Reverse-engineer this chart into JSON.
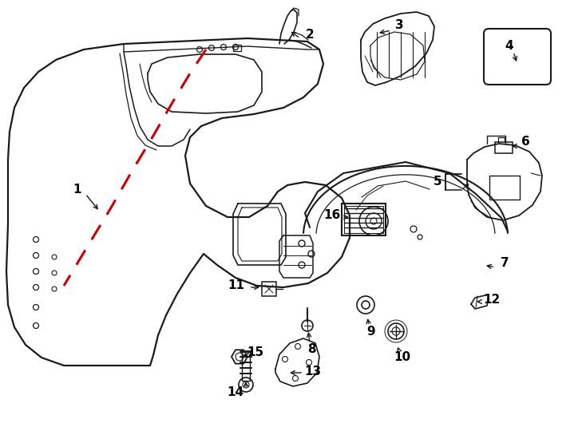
{
  "bg_color": "#ffffff",
  "lc": "#1a1a1a",
  "rc": "#cc0000",
  "lw": 1.3,
  "fs": 11
}
